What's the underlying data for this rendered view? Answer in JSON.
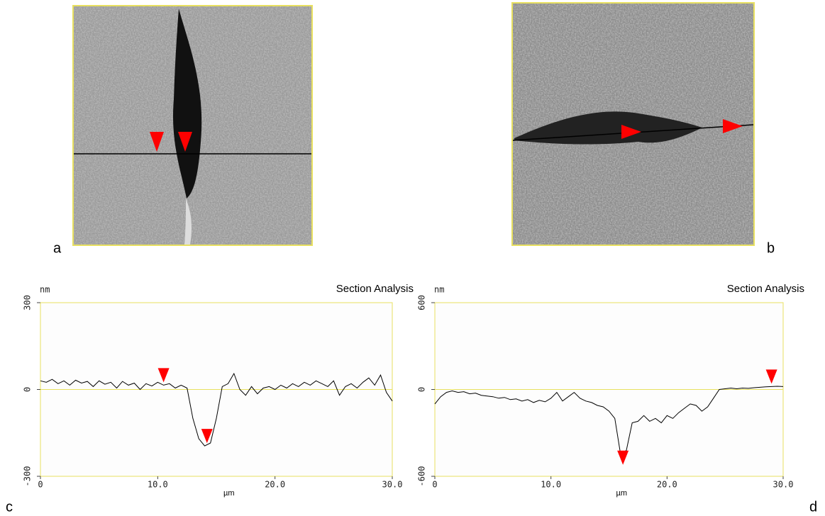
{
  "panel_labels": [
    "a",
    "b",
    "c",
    "d"
  ],
  "chart_data": [
    {
      "type": "line",
      "title": "Section Analysis",
      "y_label": "nm",
      "x_label": "µm",
      "color": "#000000",
      "xlim": [
        0,
        30
      ],
      "ylim": [
        -300,
        300
      ],
      "xticks": [
        0,
        {
          "value": 10,
          "label": "10.0"
        },
        {
          "value": 20,
          "label": "20.0"
        },
        {
          "value": 30,
          "label": "30.0"
        }
      ],
      "yticks": [
        -300,
        0,
        300
      ],
      "x": [
        0,
        0.5,
        1,
        1.5,
        2,
        2.5,
        3,
        3.5,
        4,
        4.5,
        5,
        5.5,
        6,
        6.5,
        7,
        7.5,
        8,
        8.5,
        9,
        9.5,
        10,
        10.5,
        11,
        11.5,
        12,
        12.5,
        13,
        13.5,
        14,
        14.5,
        15,
        15.5,
        16,
        16.5,
        17,
        17.5,
        18,
        18.5,
        19,
        19.5,
        20,
        20.5,
        21,
        21.5,
        22,
        22.5,
        23,
        23.5,
        24,
        24.5,
        25,
        25.5,
        26,
        26.5,
        27,
        27.5,
        28,
        28.5,
        29,
        29.5,
        30
      ],
      "values": [
        30,
        25,
        35,
        20,
        30,
        15,
        32,
        22,
        28,
        10,
        30,
        18,
        25,
        5,
        28,
        15,
        22,
        0,
        20,
        12,
        25,
        15,
        20,
        5,
        15,
        5,
        -100,
        -170,
        -195,
        -185,
        -100,
        10,
        20,
        55,
        0,
        -20,
        10,
        -15,
        5,
        10,
        0,
        15,
        5,
        20,
        10,
        25,
        15,
        30,
        20,
        10,
        30,
        -20,
        10,
        20,
        5,
        25,
        40,
        15,
        50,
        -10,
        -40
      ],
      "cursors": {
        "x": [
          10.5,
          14.2
        ],
        "y": [
          20,
          -190
        ],
        "color": "#ff0000"
      }
    },
    {
      "type": "line",
      "title": "Section Analysis",
      "y_label": "nm",
      "x_label": "µm",
      "color": "#000000",
      "xlim": [
        0,
        30
      ],
      "ylim": [
        -600,
        600
      ],
      "xticks": [
        0,
        {
          "value": 10,
          "label": "10.0"
        },
        {
          "value": 20,
          "label": "20.0"
        },
        {
          "value": 30,
          "label": "30.0"
        }
      ],
      "yticks": [
        -600,
        0,
        600
      ],
      "x": [
        0,
        0.5,
        1,
        1.5,
        2,
        2.5,
        3,
        3.5,
        4,
        4.5,
        5,
        5.5,
        6,
        6.5,
        7,
        7.5,
        8,
        8.5,
        9,
        9.5,
        10,
        10.5,
        11,
        11.5,
        12,
        12.5,
        13,
        13.5,
        14,
        14.5,
        15,
        15.5,
        16,
        16.5,
        17,
        17.5,
        18,
        18.5,
        19,
        19.5,
        20,
        20.5,
        21,
        21.5,
        22,
        22.5,
        23,
        23.5,
        24,
        24.5,
        25,
        25.5,
        26,
        26.5,
        27,
        27.5,
        28,
        28.5,
        29,
        29.5,
        30
      ],
      "values": [
        -100,
        -50,
        -20,
        -10,
        -20,
        -15,
        -30,
        -25,
        -40,
        -45,
        -50,
        -60,
        -55,
        -70,
        -65,
        -80,
        -70,
        -90,
        -75,
        -85,
        -60,
        -20,
        -80,
        -50,
        -20,
        -60,
        -80,
        -90,
        -110,
        -120,
        -150,
        -200,
        -450,
        -420,
        -230,
        -220,
        -180,
        -220,
        -200,
        -230,
        -180,
        -200,
        -160,
        -130,
        -100,
        -110,
        -150,
        -120,
        -60,
        0,
        5,
        10,
        5,
        10,
        8,
        12,
        15,
        18,
        20,
        22,
        20
      ],
      "cursors": {
        "x": [
          16.2,
          29
        ],
        "y": [
          -530,
          30
        ],
        "color": "#ff0000"
      }
    }
  ]
}
